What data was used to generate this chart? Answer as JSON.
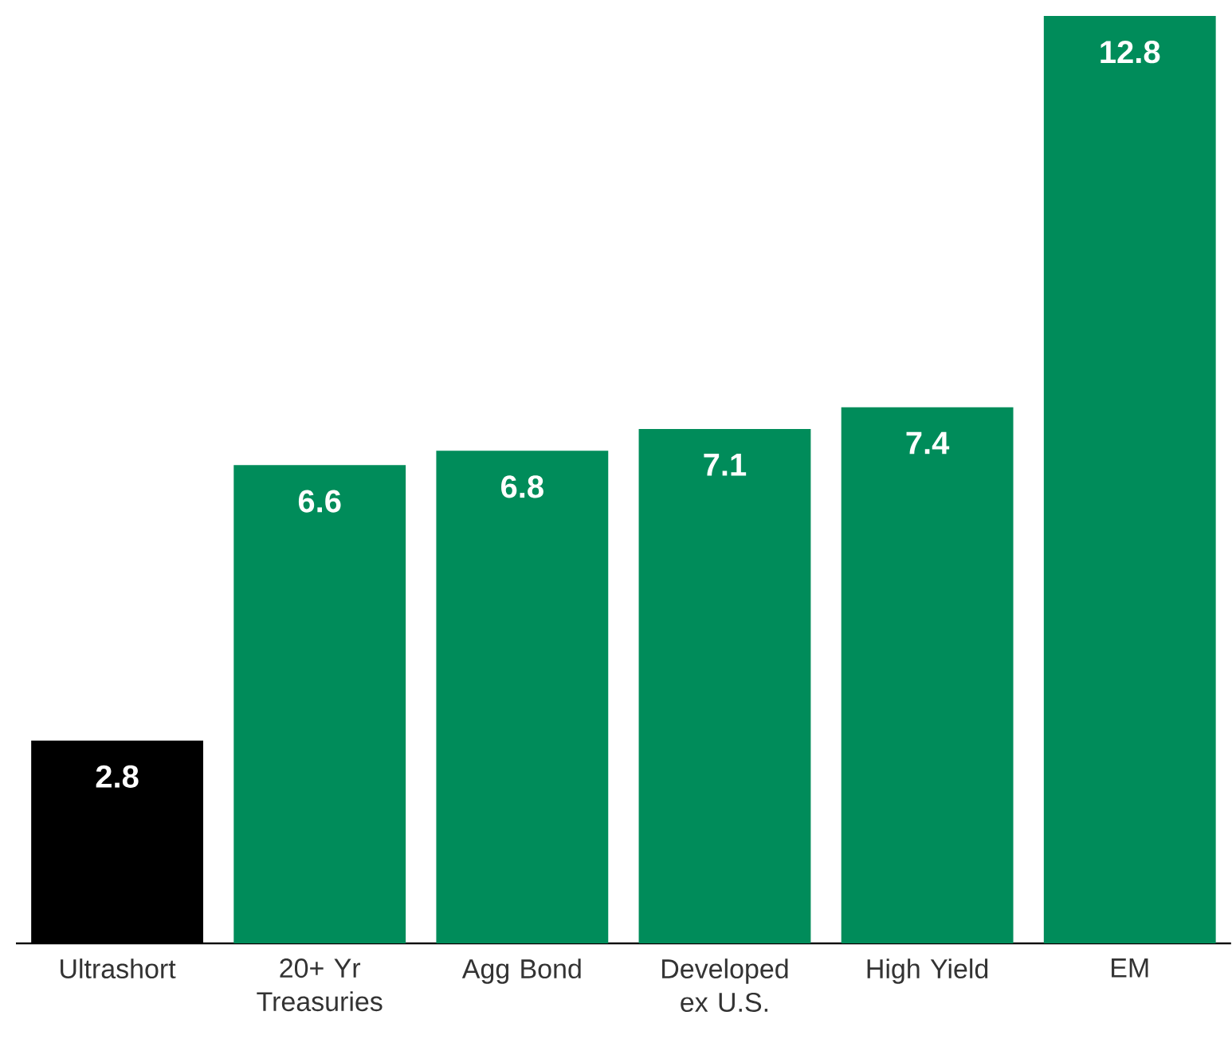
{
  "chart_data": {
    "type": "bar",
    "categories": [
      "Ultrashort",
      "20+ Yr Treasuries",
      "Agg Bond",
      "Developed ex U.S.",
      "High Yield",
      "EM"
    ],
    "values": [
      2.8,
      6.6,
      6.8,
      7.1,
      7.4,
      12.8
    ],
    "colors": [
      "#000000",
      "#008c5a",
      "#008c5a",
      "#008c5a",
      "#008c5a",
      "#008c5a"
    ],
    "ylim": [
      0,
      12.8
    ],
    "data_labels": true,
    "tick_labels": "x"
  }
}
